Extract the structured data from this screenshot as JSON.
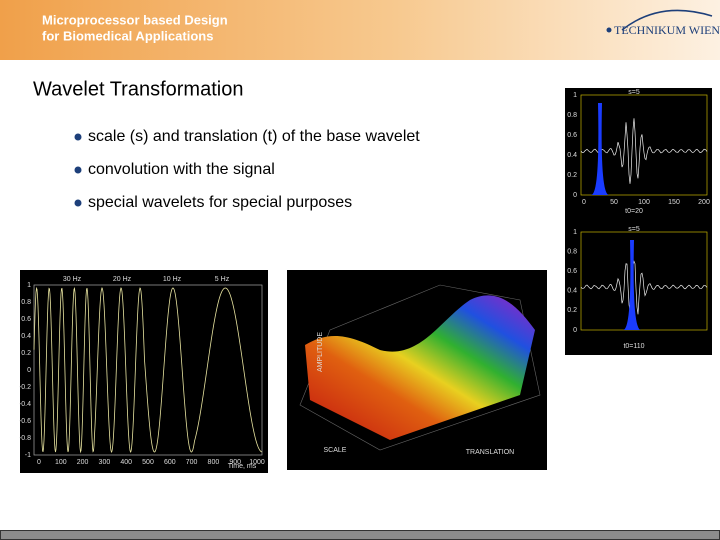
{
  "header": {
    "title_lines": [
      "Microprocessor based Design",
      "for Biomedical Applications"
    ],
    "logo": "TECHNIKUM WIEN"
  },
  "slide": {
    "title": "Wavelet Transformation",
    "bullets": [
      "scale (s) and translation (t) of the base wavelet",
      "convolution with the signal",
      "special wavelets for special purposes"
    ]
  },
  "figures": {
    "wavelet": {
      "top_label": "s=5",
      "bottom_label": "s=5",
      "top_x_label": "t0=20",
      "bottom_x_label": "t0=110",
      "y_ticks": [
        "1",
        "0.8",
        "0.6",
        "0.4",
        "0.2",
        "0"
      ],
      "x_ticks": [
        "0",
        "50",
        "100",
        "150",
        "200"
      ]
    },
    "signal": {
      "freq_labels": [
        "30 Hz",
        "20 Hz",
        "10 Hz",
        "5 Hz"
      ],
      "y_ticks": [
        "1",
        "0.8",
        "0.6",
        "0.4",
        "0.2",
        "0",
        "-0.2",
        "-0.4",
        "-0.6",
        "-0.8",
        "-1"
      ],
      "x_ticks": [
        "0",
        "100",
        "200",
        "300",
        "400",
        "500",
        "600",
        "700",
        "800",
        "900",
        "1000"
      ],
      "x_label": "Time, ms"
    },
    "surface": {
      "z_label": "AMPLITUDE",
      "x_label": "SCALE",
      "y_label": "TRANSLATION"
    }
  }
}
